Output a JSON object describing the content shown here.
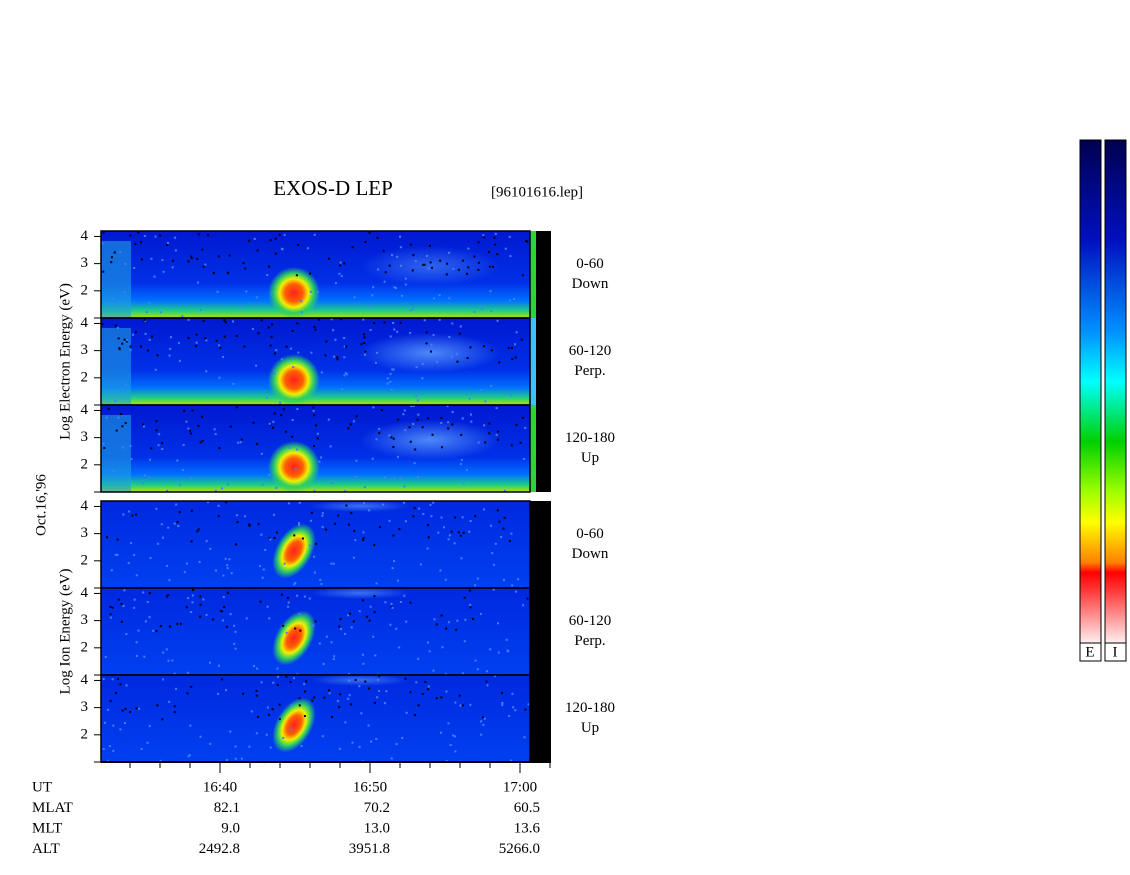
{
  "chart_data": {
    "type": "spectrogram",
    "title": "EXOS-D LEP",
    "file_label": "[96101616.lep]",
    "date_label": "Oct.16,'96",
    "ylim": [
      1,
      4.2
    ],
    "yticks": [
      2,
      3,
      4
    ],
    "groups": [
      {
        "ylabel": "Log Electron Energy (eV)",
        "panels": [
          {
            "angle": "0-60",
            "direction": "Down"
          },
          {
            "angle": "60-120",
            "direction": "Perp."
          },
          {
            "angle": "120-180",
            "direction": "Up"
          }
        ]
      },
      {
        "ylabel": "Log Ion Energy (eV)",
        "panels": [
          {
            "angle": "0-60",
            "direction": "Down"
          },
          {
            "angle": "60-120",
            "direction": "Perp."
          },
          {
            "angle": "120-180",
            "direction": "Up"
          }
        ]
      }
    ],
    "xtick_labels": [
      "16:40",
      "16:50",
      "17:00"
    ],
    "footer": [
      {
        "label": "UT"
      },
      {
        "label": "MLAT",
        "values": [
          "82.1",
          "70.2",
          "60.5"
        ]
      },
      {
        "label": "MLT",
        "values": [
          "9.0",
          "13.0",
          "13.6"
        ]
      },
      {
        "label": "ALT",
        "values": [
          "2492.8",
          "3951.8",
          "5266.0"
        ]
      }
    ],
    "colorbar_labels": [
      "E",
      "I"
    ]
  }
}
